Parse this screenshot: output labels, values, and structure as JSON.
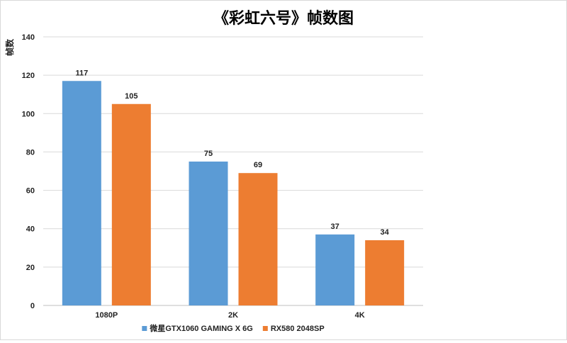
{
  "chart_data": {
    "type": "bar",
    "title": "《彩虹六号》帧数图",
    "xlabel": "",
    "ylabel": "帧数",
    "categories": [
      "1080P",
      "2K",
      "4K"
    ],
    "series": [
      {
        "name": "微星GTX1060 GAMING X 6G",
        "values": [
          117,
          75,
          37
        ],
        "color": "#5b9bd5"
      },
      {
        "name": "RX580 2048SP",
        "values": [
          105,
          69,
          34
        ],
        "color": "#ed7d31"
      }
    ],
    "ylim": [
      0,
      140
    ],
    "yticks": [
      0,
      20,
      40,
      60,
      80,
      100,
      120,
      140
    ],
    "grid": true,
    "legend": "bottom",
    "data_labels": true
  }
}
